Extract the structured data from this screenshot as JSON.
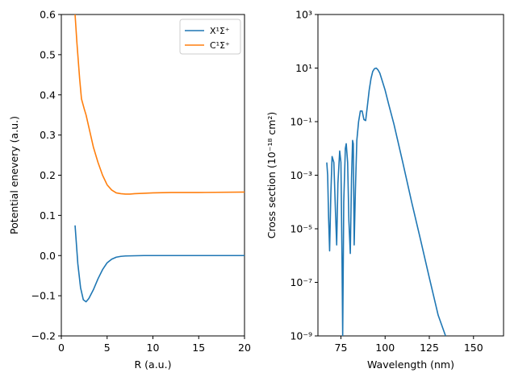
{
  "chart_data": [
    {
      "type": "line",
      "xlabel": "R (a.u.)",
      "ylabel": "Potential enevery (a.u.)",
      "xlim": [
        0,
        20
      ],
      "ylim": [
        -0.2,
        0.6
      ],
      "xticks": [
        0,
        5,
        10,
        15,
        20
      ],
      "xtick_labels": [
        "0",
        "5",
        "10",
        "15",
        "20"
      ],
      "yticks": [
        -0.2,
        -0.1,
        0.0,
        0.1,
        0.2,
        0.3,
        0.4,
        0.5,
        0.6
      ],
      "ytick_labels": [
        "−0.2",
        "−0.1",
        "0.0",
        "0.1",
        "0.2",
        "0.3",
        "0.4",
        "0.5",
        "0.6"
      ],
      "grid": false,
      "legend_position": "top-right",
      "series": [
        {
          "name": "X¹Σ⁺",
          "color": "#1f77b4",
          "x": [
            1.5,
            1.8,
            2.1,
            2.4,
            2.7,
            3.0,
            3.5,
            4.0,
            4.5,
            5.0,
            5.5,
            6.0,
            6.5,
            7.0,
            8.0,
            9.0,
            10.0,
            12.0,
            15.0,
            20.0
          ],
          "y": [
            0.075,
            -0.02,
            -0.08,
            -0.11,
            -0.115,
            -0.107,
            -0.085,
            -0.058,
            -0.035,
            -0.018,
            -0.009,
            -0.004,
            -0.002,
            -0.001,
            -0.0005,
            0.0,
            0.0,
            0.0,
            0.0,
            0.0
          ]
        },
        {
          "name": "C¹Σ⁺",
          "color": "#ff7f0e",
          "x": [
            1.5,
            1.7,
            2.0,
            2.2,
            2.5,
            2.7,
            3.0,
            3.5,
            4.0,
            4.5,
            5.0,
            5.5,
            6.0,
            6.5,
            7.0,
            7.5,
            8.0,
            10.0,
            12.0,
            15.0,
            20.0
          ],
          "y": [
            0.6,
            0.53,
            0.44,
            0.39,
            0.365,
            0.35,
            0.32,
            0.27,
            0.232,
            0.2,
            0.176,
            0.163,
            0.156,
            0.154,
            0.153,
            0.153,
            0.154,
            0.156,
            0.157,
            0.157,
            0.158
          ]
        }
      ]
    },
    {
      "type": "line",
      "xlabel": "Wavelength (nm)",
      "ylabel": "Cross section (10⁻¹⁸ cm²)",
      "xscale": "linear",
      "yscale": "log",
      "xlim": [
        62,
        167
      ],
      "ylim": [
        1e-09,
        1000
      ],
      "xticks": [
        75,
        100,
        125,
        150
      ],
      "xtick_labels": [
        "75",
        "100",
        "125",
        "150"
      ],
      "yticks": [
        1e-09,
        1e-07,
        1e-05,
        0.001,
        0.1,
        10,
        1000
      ],
      "ytick_labels": [
        "10⁻⁹",
        "10⁻⁷",
        "10⁻⁵",
        "10⁻³",
        "10⁻¹",
        "10¹",
        "10³"
      ],
      "grid": false,
      "series": [
        {
          "color": "#1f77b4",
          "x": [
            67.0,
            67.5,
            68.0,
            68.6,
            69.3,
            70.0,
            71.0,
            72.0,
            72.6,
            73.3,
            74.3,
            75.0,
            75.6,
            76.0,
            76.6,
            77.5,
            78.0,
            78.8,
            79.5,
            80.3,
            81.0,
            81.6,
            82.0,
            82.5,
            83.2,
            84.0,
            85.0,
            86.0,
            87.0,
            88.0,
            89.0,
            90.0,
            91.0,
            92.0,
            93.0,
            94.0,
            95.0,
            96.0,
            97.0,
            98.0,
            100.0,
            102.0,
            105.0,
            110.0,
            115.0,
            120.0,
            125.0,
            130.0,
            134.2
          ],
          "y": [
            0.003,
            0.001,
            3e-05,
            1.5e-06,
            0.0002,
            0.005,
            0.003,
            3e-05,
            2.5e-06,
            0.0005,
            0.008,
            0.003,
            1e-06,
            1e-09,
            0.0001,
            0.01,
            0.015,
            0.003,
            2e-05,
            1.2e-06,
            0.0008,
            0.02,
            0.015,
            2.5e-06,
            0.0003,
            0.02,
            0.1,
            0.25,
            0.25,
            0.12,
            0.11,
            0.4,
            1.5,
            4.0,
            7.5,
            9.5,
            10.0,
            8.5,
            6.5,
            4.0,
            1.5,
            0.45,
            0.08,
            0.003,
            0.0001,
            4e-06,
            1.5e-07,
            6e-09,
            1e-09
          ]
        }
      ]
    }
  ],
  "legend": {
    "items": [
      "X¹Σ⁺",
      "C¹Σ⁺"
    ]
  }
}
